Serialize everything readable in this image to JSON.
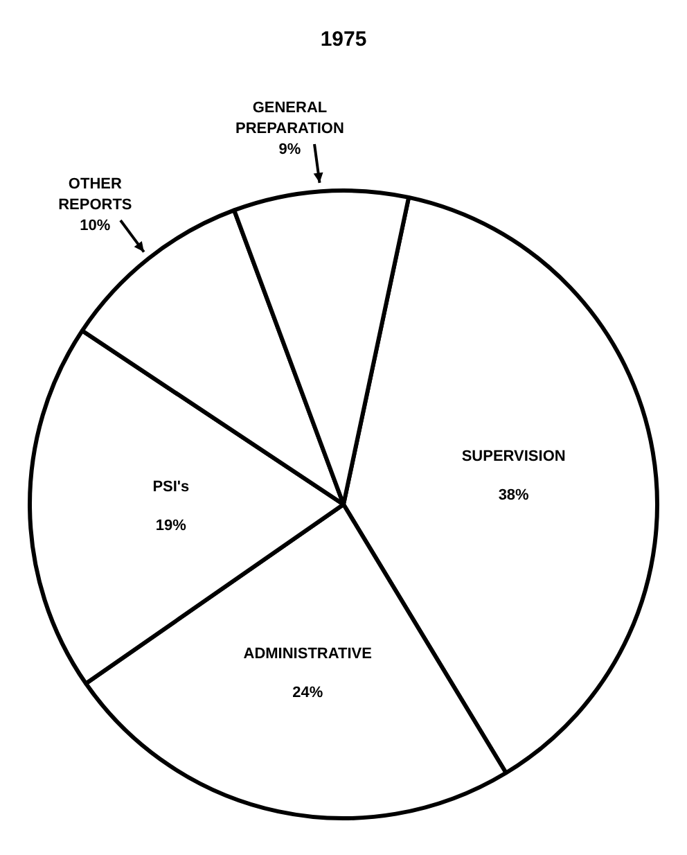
{
  "chart_data": {
    "type": "pie",
    "title": "1975",
    "categories": [
      "SUPERVISION",
      "ADMINISTRATIVE",
      "PSI's",
      "OTHER REPORTS",
      "GENERAL PREPARATION"
    ],
    "values": [
      38,
      24,
      19,
      10,
      9
    ],
    "value_labels": [
      "38%",
      "24%",
      "19%",
      "10%",
      "9%"
    ],
    "colors": [
      "#ffffff",
      "#ffffff",
      "#ffffff",
      "#ffffff",
      "#ffffff"
    ],
    "legend": false
  }
}
